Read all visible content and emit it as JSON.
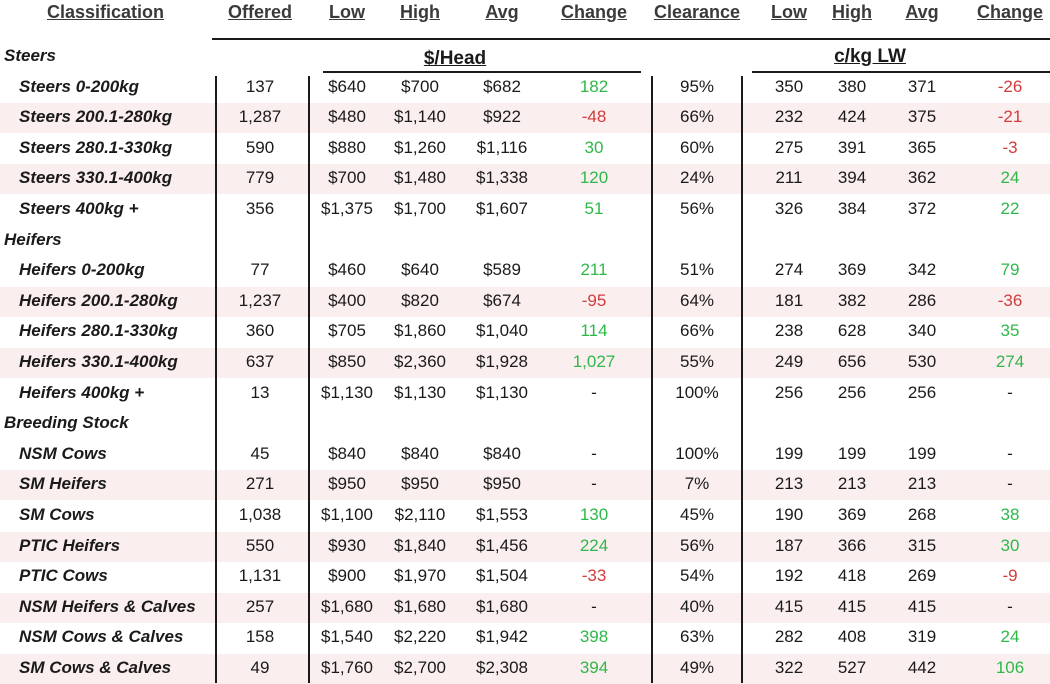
{
  "headers": [
    "Classification",
    "Offered",
    "Low",
    "High",
    "Avg",
    "Change",
    "Clearance",
    "Low",
    "High",
    "Avg",
    "Change"
  ],
  "group_labels": {
    "head": "$/Head",
    "lw": "c/kg LW"
  },
  "colors": {
    "positive": "#2fb84a",
    "negative": "#d23c3c",
    "band": "#fbeeee"
  },
  "rows": [
    {
      "type": "section",
      "label": "Steers"
    },
    {
      "type": "data",
      "label": "Steers 0-200kg",
      "offered": "137",
      "low": "$640",
      "high": "$700",
      "avg": "$682",
      "change": "182",
      "clearance": "95%",
      "lw_low": "350",
      "lw_high": "380",
      "lw_avg": "371",
      "lw_change": "-26"
    },
    {
      "type": "data",
      "label": "Steers 200.1-280kg",
      "offered": "1,287",
      "low": "$480",
      "high": "$1,140",
      "avg": "$922",
      "change": "-48",
      "clearance": "66%",
      "lw_low": "232",
      "lw_high": "424",
      "lw_avg": "375",
      "lw_change": "-21"
    },
    {
      "type": "data",
      "label": "Steers 280.1-330kg",
      "offered": "590",
      "low": "$880",
      "high": "$1,260",
      "avg": "$1,116",
      "change": "30",
      "clearance": "60%",
      "lw_low": "275",
      "lw_high": "391",
      "lw_avg": "365",
      "lw_change": "-3"
    },
    {
      "type": "data",
      "label": "Steers 330.1-400kg",
      "offered": "779",
      "low": "$700",
      "high": "$1,480",
      "avg": "$1,338",
      "change": "120",
      "clearance": "24%",
      "lw_low": "211",
      "lw_high": "394",
      "lw_avg": "362",
      "lw_change": "24"
    },
    {
      "type": "data",
      "label": "Steers 400kg +",
      "offered": "356",
      "low": "$1,375",
      "high": "$1,700",
      "avg": "$1,607",
      "change": "51",
      "clearance": "56%",
      "lw_low": "326",
      "lw_high": "384",
      "lw_avg": "372",
      "lw_change": "22"
    },
    {
      "type": "section",
      "label": "Heifers"
    },
    {
      "type": "data",
      "label": "Heifers 0-200kg",
      "offered": "77",
      "low": "$460",
      "high": "$640",
      "avg": "$589",
      "change": "211",
      "clearance": "51%",
      "lw_low": "274",
      "lw_high": "369",
      "lw_avg": "342",
      "lw_change": "79"
    },
    {
      "type": "data",
      "label": "Heifers 200.1-280kg",
      "offered": "1,237",
      "low": "$400",
      "high": "$820",
      "avg": "$674",
      "change": "-95",
      "clearance": "64%",
      "lw_low": "181",
      "lw_high": "382",
      "lw_avg": "286",
      "lw_change": "-36"
    },
    {
      "type": "data",
      "label": "Heifers 280.1-330kg",
      "offered": "360",
      "low": "$705",
      "high": "$1,860",
      "avg": "$1,040",
      "change": "114",
      "clearance": "66%",
      "lw_low": "238",
      "lw_high": "628",
      "lw_avg": "340",
      "lw_change": "35"
    },
    {
      "type": "data",
      "label": "Heifers 330.1-400kg",
      "offered": "637",
      "low": "$850",
      "high": "$2,360",
      "avg": "$1,928",
      "change": "1,027",
      "clearance": "55%",
      "lw_low": "249",
      "lw_high": "656",
      "lw_avg": "530",
      "lw_change": "274"
    },
    {
      "type": "data",
      "label": "Heifers 400kg +",
      "offered": "13",
      "low": "$1,130",
      "high": "$1,130",
      "avg": "$1,130",
      "change": "-",
      "clearance": "100%",
      "lw_low": "256",
      "lw_high": "256",
      "lw_avg": "256",
      "lw_change": "-"
    },
    {
      "type": "section",
      "label": "Breeding Stock"
    },
    {
      "type": "data",
      "label": "NSM Cows",
      "offered": "45",
      "low": "$840",
      "high": "$840",
      "avg": "$840",
      "change": "-",
      "clearance": "100%",
      "lw_low": "199",
      "lw_high": "199",
      "lw_avg": "199",
      "lw_change": "-"
    },
    {
      "type": "data",
      "label": "SM Heifers",
      "offered": "271",
      "low": "$950",
      "high": "$950",
      "avg": "$950",
      "change": "-",
      "clearance": "7%",
      "lw_low": "213",
      "lw_high": "213",
      "lw_avg": "213",
      "lw_change": "-"
    },
    {
      "type": "data",
      "label": "SM Cows",
      "offered": "1,038",
      "low": "$1,100",
      "high": "$2,110",
      "avg": "$1,553",
      "change": "130",
      "clearance": "45%",
      "lw_low": "190",
      "lw_high": "369",
      "lw_avg": "268",
      "lw_change": "38"
    },
    {
      "type": "data",
      "label": "PTIC Heifers",
      "offered": "550",
      "low": "$930",
      "high": "$1,840",
      "avg": "$1,456",
      "change": "224",
      "clearance": "56%",
      "lw_low": "187",
      "lw_high": "366",
      "lw_avg": "315",
      "lw_change": "30"
    },
    {
      "type": "data",
      "label": "PTIC Cows",
      "offered": "1,131",
      "low": "$900",
      "high": "$1,970",
      "avg": "$1,504",
      "change": "-33",
      "clearance": "54%",
      "lw_low": "192",
      "lw_high": "418",
      "lw_avg": "269",
      "lw_change": "-9"
    },
    {
      "type": "data",
      "label": "NSM Heifers & Calves",
      "offered": "257",
      "low": "$1,680",
      "high": "$1,680",
      "avg": "$1,680",
      "change": "-",
      "clearance": "40%",
      "lw_low": "415",
      "lw_high": "415",
      "lw_avg": "415",
      "lw_change": "-"
    },
    {
      "type": "data",
      "label": "NSM Cows & Calves",
      "offered": "158",
      "low": "$1,540",
      "high": "$2,220",
      "avg": "$1,942",
      "change": "398",
      "clearance": "63%",
      "lw_low": "282",
      "lw_high": "408",
      "lw_avg": "319",
      "lw_change": "24"
    },
    {
      "type": "data",
      "label": "SM Cows & Calves",
      "offered": "49",
      "low": "$1,760",
      "high": "$2,700",
      "avg": "$2,308",
      "change": "394",
      "clearance": "49%",
      "lw_low": "322",
      "lw_high": "527",
      "lw_avg": "442",
      "lw_change": "106"
    }
  ]
}
